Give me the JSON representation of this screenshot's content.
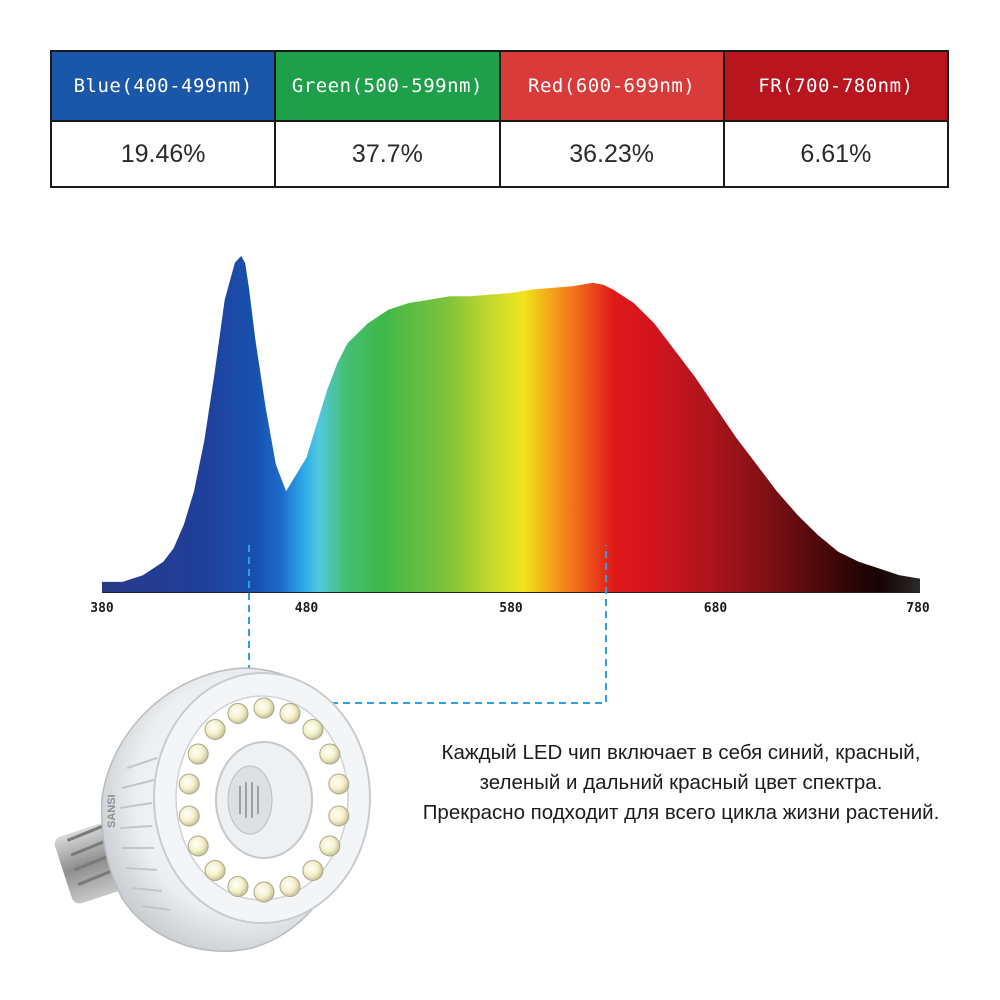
{
  "table": {
    "columns": [
      {
        "label": "Blue(400-499nm)",
        "value": "19.46%",
        "color": "#1b57a8"
      },
      {
        "label": "Green(500-599nm)",
        "value": "37.7%",
        "color": "#1ea04a"
      },
      {
        "label": "Red(600-699nm)",
        "value": "36.23%",
        "color": "#d93b3b"
      },
      {
        "label": "FR(700-780nm)",
        "value": "6.61%",
        "color": "#b8151f"
      }
    ]
  },
  "chart_data": {
    "type": "area",
    "title": "",
    "xlabel": "",
    "ylabel": "",
    "xlim": [
      380,
      780
    ],
    "x_ticks": [
      "380",
      "480",
      "580",
      "680",
      "780"
    ],
    "grid": false,
    "series": [
      {
        "x": [
          380,
          390,
          400,
          410,
          415,
          420,
          425,
          430,
          435,
          440,
          445,
          448,
          450,
          452,
          455,
          460,
          465,
          470,
          475,
          480,
          485,
          490,
          495,
          500,
          510,
          520,
          530,
          540,
          550,
          560,
          570,
          580,
          590,
          600,
          610,
          620,
          625,
          630,
          640,
          650,
          660,
          670,
          680,
          690,
          700,
          710,
          720,
          730,
          740,
          750,
          760,
          770,
          780
        ],
        "y": [
          0.03,
          0.03,
          0.05,
          0.09,
          0.13,
          0.2,
          0.3,
          0.45,
          0.65,
          0.87,
          0.98,
          1.0,
          0.98,
          0.9,
          0.75,
          0.55,
          0.38,
          0.3,
          0.35,
          0.4,
          0.5,
          0.6,
          0.68,
          0.74,
          0.8,
          0.84,
          0.86,
          0.87,
          0.88,
          0.88,
          0.885,
          0.89,
          0.9,
          0.905,
          0.91,
          0.92,
          0.915,
          0.9,
          0.86,
          0.8,
          0.72,
          0.64,
          0.55,
          0.46,
          0.38,
          0.3,
          0.23,
          0.17,
          0.12,
          0.09,
          0.07,
          0.05,
          0.04
        ]
      }
    ]
  },
  "caption": {
    "lines": [
      "Каждый LED чип включает в себя синий, красный,",
      "зеленый и дальний красный цвет спектра.",
      "Прекрасно подходит для всего цикла жизни растений."
    ]
  },
  "bulb": {
    "brand_text": "SANSI"
  },
  "colors": {
    "connector": "#2d9fe3",
    "text": "#1c1c1c"
  }
}
